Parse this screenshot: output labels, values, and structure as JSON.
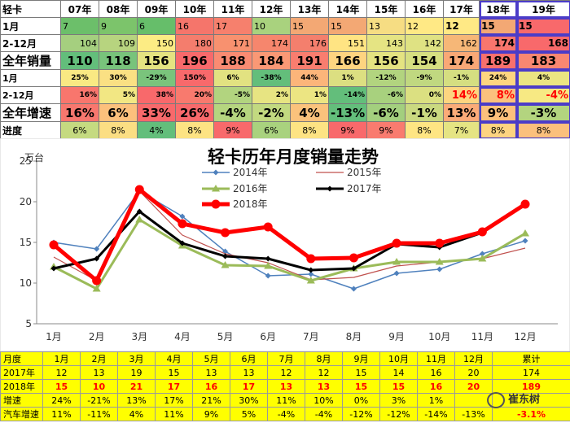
{
  "top_table": {
    "corner": "轻卡",
    "years": [
      "07年",
      "08年",
      "09年",
      "10年",
      "11年",
      "12年",
      "13年",
      "14年",
      "15年",
      "16年",
      "17年",
      "18年",
      "19年"
    ],
    "rows": [
      {
        "label": "1月",
        "cells": [
          "7",
          "9",
          "6",
          "16",
          "17",
          "10",
          "15",
          "15",
          "13",
          "12",
          "12",
          "15",
          "15"
        ]
      },
      {
        "label": "2-12月",
        "cells": [
          "104",
          "109",
          "150",
          "180",
          "171",
          "174",
          "176",
          "151",
          "143",
          "142",
          "162",
          "174",
          "168"
        ]
      },
      {
        "label": "全年销量",
        "cells": [
          "110",
          "118",
          "156",
          "196",
          "188",
          "184",
          "191",
          "166",
          "156",
          "154",
          "174",
          "189",
          "183"
        ]
      },
      {
        "label": "1月",
        "cells": [
          "25%",
          "30%",
          "-29%",
          "150%",
          "6%",
          "-38%",
          "44%",
          "1%",
          "-12%",
          "-9%",
          "-1%",
          "24%",
          "4%"
        ]
      },
      {
        "label": "2-12月",
        "cells": [
          "16%",
          "5%",
          "38%",
          "20%",
          "-5%",
          "2%",
          "1%",
          "-14%",
          "-6%",
          "0%",
          "14%",
          "8%",
          "-4%"
        ]
      },
      {
        "label": "全年增速",
        "cells": [
          "16%",
          "6%",
          "33%",
          "26%",
          "-4%",
          "-2%",
          "4%",
          "-13%",
          "-6%",
          "-1%",
          "13%",
          "9%",
          "-3%"
        ]
      },
      {
        "label": "进度",
        "cells": [
          "6%",
          "8%",
          "4%",
          "8%",
          "9%",
          "6%",
          "8%",
          "9%",
          "9%",
          "8%",
          "7%",
          "8%",
          "8%"
        ]
      }
    ],
    "colors": {
      "r0": [
        "#6cbf6a",
        "#7cc46b",
        "#66be6a",
        "#f5756b",
        "#f6806d",
        "#a9d27e",
        "#f3a874",
        "#f3a874",
        "#f6dd83",
        "#ffe985",
        "#ffe985",
        "#f3a874",
        "#f8696b"
      ],
      "r1": [
        "#a5cf7f",
        "#b7d47f",
        "#fcec84",
        "#f47d6d",
        "#f8916f",
        "#f6866d",
        "#f47f6d",
        "#ffe483",
        "#e5e483",
        "#dfe283",
        "#f6b777",
        "#f8766d",
        "#f8696b"
      ],
      "r2": [
        "#63be7b",
        "#78c37b",
        "#e4e381",
        "#f8696b",
        "#fa8b72",
        "#fa9875",
        "#f97d6f",
        "#fed480",
        "#e4e381",
        "#d6df81",
        "#f9a876",
        "#f8706d",
        "#f98771"
      ],
      "r3": [
        "#f9e983",
        "#fae083",
        "#7ac47c",
        "#f8696b",
        "#e2e281",
        "#63be7b",
        "#fcb57a",
        "#dcdf81",
        "#b2d47f",
        "#c0d880",
        "#d5de81",
        "#fdd580",
        "#ebe582"
      ],
      "r4": [
        "#f8766d",
        "#f2e783",
        "#f8696b",
        "#f87a6e",
        "#b2d47f",
        "#e7e482",
        "#ece582",
        "#63be7b",
        "#a8d17e",
        "#dbe081",
        "#fdd580",
        "#fbc17d",
        "#f7e983"
      ],
      "r5": [
        "#f8776e",
        "#fcc07c",
        "#f8696b",
        "#f8696b",
        "#b5d57f",
        "#c2d980",
        "#fbc27c",
        "#63be7b",
        "#a3cf7e",
        "#cad980",
        "#fbab78",
        "#fcc07c",
        "#b3d47f"
      ],
      "r6": [
        "#c5da80",
        "#fbde83",
        "#63be7b",
        "#fde383",
        "#f8696b",
        "#a9d27e",
        "#fde383",
        "#f8696b",
        "#f97b6f",
        "#fee583",
        "#e5e483",
        "#fdd380",
        "#fbc07c"
      ]
    },
    "red_text_cells": {
      "r4": [
        10,
        11,
        12
      ]
    }
  },
  "chart_data": {
    "type": "line",
    "title": "轻卡历年月度销量走势",
    "ylabel": "万台",
    "xlabel": "",
    "categories": [
      "1月",
      "2月",
      "3月",
      "4月",
      "5月",
      "6月",
      "7月",
      "8月",
      "9月",
      "10月",
      "11月",
      "12月"
    ],
    "ylim": [
      5,
      25
    ],
    "yticks": [
      5,
      10,
      15,
      20,
      25
    ],
    "legend_position": "top-center",
    "grid": false,
    "series": [
      {
        "name": "2014年",
        "color": "#4f81bd",
        "marker": "diamond",
        "width": 1.5,
        "values": [
          15.0,
          14.2,
          21.3,
          18.2,
          13.9,
          10.9,
          11.1,
          9.3,
          11.2,
          11.7,
          13.6,
          15.2
        ]
      },
      {
        "name": "2015年",
        "color": "#c0504d",
        "marker": "none",
        "width": 1.2,
        "values": [
          13.2,
          10.3,
          21.3,
          15.9,
          13.6,
          12.5,
          10.4,
          10.7,
          12.1,
          12.6,
          13.0,
          14.3
        ]
      },
      {
        "name": "2016年",
        "color": "#9bbb59",
        "marker": "triangle",
        "width": 3,
        "values": [
          12.0,
          9.3,
          17.8,
          14.6,
          12.2,
          12.1,
          10.3,
          11.8,
          12.6,
          12.6,
          13.0,
          16.1
        ]
      },
      {
        "name": "2017年",
        "color": "#000000",
        "marker": "diamond",
        "width": 3,
        "values": [
          11.8,
          13.0,
          18.8,
          14.9,
          13.3,
          13.0,
          11.6,
          11.8,
          14.8,
          14.4,
          16.2,
          19.7
        ]
      },
      {
        "name": "2018年",
        "color": "#ff0000",
        "marker": "circle",
        "width": 5,
        "values": [
          14.7,
          10.3,
          21.5,
          17.3,
          16.2,
          16.9,
          13.0,
          13.1,
          14.9,
          14.9,
          16.3,
          19.7
        ]
      }
    ]
  },
  "bottom_table": {
    "header": [
      "月度",
      "1月",
      "2月",
      "3月",
      "4月",
      "5月",
      "6月",
      "7月",
      "8月",
      "9月",
      "10月",
      "11月",
      "12月",
      "累计"
    ],
    "rows": [
      {
        "label": "2017年",
        "cells": [
          "12",
          "13",
          "19",
          "15",
          "13",
          "13",
          "12",
          "12",
          "15",
          "14",
          "16",
          "20",
          "174"
        ]
      },
      {
        "label": "2018年",
        "cells": [
          "15",
          "10",
          "21",
          "17",
          "16",
          "17",
          "13",
          "13",
          "15",
          "15",
          "16",
          "20",
          "189"
        ]
      },
      {
        "label": "增速",
        "cells": [
          "24%",
          "-21%",
          "13%",
          "17%",
          "21%",
          "30%",
          "11%",
          "10%",
          "0%",
          "3%",
          "1%",
          "",
          ""
        ]
      },
      {
        "label": "汽车增速",
        "cells": [
          "11%",
          "-11%",
          "4%",
          "11%",
          "9%",
          "5%",
          "-4%",
          "-4%",
          "-12%",
          "-12%",
          "-14%",
          "-13%",
          "-3.1%"
        ]
      }
    ]
  },
  "watermark": {
    "text": "崔东树"
  }
}
